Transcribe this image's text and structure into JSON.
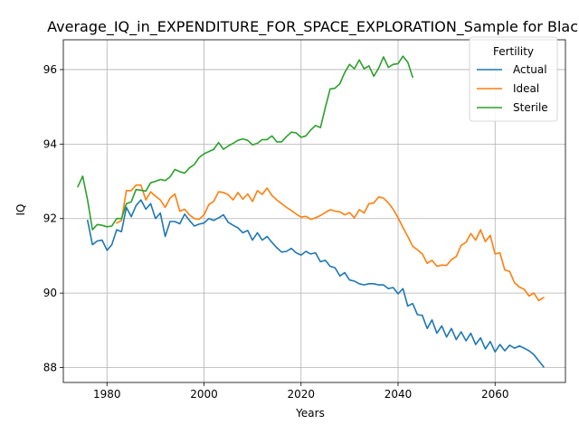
{
  "chart_data": {
    "type": "line",
    "title": "Average_IQ_in_EXPENDITURE_FOR_SPACE_EXPLORATION_Sample for Black_Ma",
    "xlabel": "Years",
    "ylabel": "IQ",
    "xlim": [
      1971,
      2074.5
    ],
    "ylim": [
      87.6,
      96.8
    ],
    "xticks": [
      1980,
      2000,
      2020,
      2040,
      2060
    ],
    "yticks": [
      88,
      90,
      92,
      94,
      96
    ],
    "grid": true,
    "legend": {
      "title": "Fertility",
      "position": "top-right"
    },
    "colors": {
      "Actual": "#1f77b4",
      "Ideal": "#ff7f0e",
      "Sterile": "#2ca02c"
    },
    "series": [
      {
        "name": "Actual",
        "x": [
          1976,
          1977,
          1978,
          1979,
          1980,
          1981,
          1982,
          1983,
          1984,
          1985,
          1986,
          1987,
          1988,
          1989,
          1990,
          1991,
          1992,
          1993,
          1994,
          1995,
          1996,
          1997,
          1998,
          1999,
          2000,
          2001,
          2002,
          2003,
          2004,
          2005,
          2006,
          2007,
          2008,
          2009,
          2010,
          2011,
          2012,
          2013,
          2014,
          2015,
          2016,
          2017,
          2018,
          2019,
          2020,
          2021,
          2022,
          2023,
          2024,
          2025,
          2026,
          2027,
          2028,
          2029,
          2030,
          2031,
          2032,
          2033,
          2034,
          2035,
          2036,
          2037,
          2038,
          2039,
          2040,
          2041,
          2042,
          2043,
          2044,
          2045,
          2046,
          2047,
          2048,
          2049,
          2050,
          2051,
          2052,
          2053,
          2054,
          2055,
          2056,
          2057,
          2058,
          2059,
          2060,
          2061,
          2062,
          2063,
          2064,
          2065,
          2066,
          2067,
          2068,
          2069,
          2070
        ],
        "values": [
          91.95,
          91.3,
          91.4,
          91.42,
          91.15,
          91.3,
          91.7,
          91.65,
          92.3,
          92.05,
          92.35,
          92.5,
          92.25,
          92.4,
          92.0,
          92.15,
          91.52,
          91.92,
          91.92,
          91.86,
          92.12,
          91.95,
          91.8,
          91.85,
          91.88,
          92.0,
          91.95,
          92.02,
          92.1,
          91.9,
          91.82,
          91.75,
          91.62,
          91.68,
          91.42,
          91.62,
          91.42,
          91.52,
          91.36,
          91.22,
          91.1,
          91.12,
          91.2,
          91.08,
          91.02,
          91.12,
          91.05,
          91.08,
          90.84,
          90.88,
          90.72,
          90.68,
          90.46,
          90.55,
          90.35,
          90.32,
          90.25,
          90.22,
          90.25,
          90.25,
          90.22,
          90.22,
          90.12,
          90.15,
          89.98,
          90.12,
          89.65,
          89.72,
          89.42,
          89.4,
          89.05,
          89.28,
          88.92,
          89.12,
          88.82,
          89.05,
          88.75,
          88.96,
          88.72,
          88.92,
          88.62,
          88.8,
          88.5,
          88.7,
          88.42,
          88.62,
          88.45,
          88.6,
          88.52,
          88.58,
          88.52,
          88.45,
          88.35,
          88.18,
          88.02
        ]
      },
      {
        "name": "Ideal",
        "x": [
          1982,
          1983,
          1984,
          1985,
          1986,
          1987,
          1988,
          1989,
          1990,
          1991,
          1992,
          1993,
          1994,
          1995,
          1996,
          1997,
          1998,
          1999,
          2000,
          2001,
          2002,
          2003,
          2004,
          2005,
          2006,
          2007,
          2008,
          2009,
          2010,
          2011,
          2012,
          2013,
          2014,
          2015,
          2016,
          2017,
          2018,
          2019,
          2020,
          2021,
          2022,
          2023,
          2024,
          2025,
          2026,
          2027,
          2028,
          2029,
          2030,
          2031,
          2032,
          2033,
          2034,
          2035,
          2036,
          2037,
          2038,
          2039,
          2040,
          2041,
          2042,
          2043,
          2044,
          2045,
          2046,
          2047,
          2048,
          2049,
          2050,
          2051,
          2052,
          2053,
          2054,
          2055,
          2056,
          2057,
          2058,
          2059,
          2060,
          2061,
          2062,
          2063,
          2064,
          2065,
          2066,
          2067,
          2068,
          2069,
          2070
        ],
        "values": [
          91.88,
          91.95,
          92.75,
          92.75,
          92.9,
          92.9,
          92.5,
          92.72,
          92.6,
          92.5,
          92.3,
          92.55,
          92.66,
          92.2,
          92.25,
          92.1,
          92.0,
          91.98,
          92.1,
          92.38,
          92.46,
          92.72,
          92.7,
          92.64,
          92.5,
          92.7,
          92.52,
          92.66,
          92.46,
          92.75,
          92.65,
          92.82,
          92.62,
          92.5,
          92.4,
          92.3,
          92.22,
          92.12,
          92.04,
          92.06,
          91.98,
          92.02,
          92.08,
          92.16,
          92.24,
          92.2,
          92.18,
          92.1,
          92.16,
          92.02,
          92.24,
          92.15,
          92.4,
          92.42,
          92.58,
          92.55,
          92.42,
          92.25,
          92.02,
          91.76,
          91.52,
          91.26,
          91.16,
          91.05,
          90.8,
          90.88,
          90.72,
          90.75,
          90.74,
          90.9,
          90.98,
          91.28,
          91.36,
          91.6,
          91.42,
          91.7,
          91.38,
          91.55,
          91.05,
          91.08,
          90.62,
          90.58,
          90.28,
          90.16,
          90.1,
          89.92,
          90.0,
          89.8,
          89.88
        ]
      },
      {
        "name": "Sterile",
        "x": [
          1974,
          1975,
          1976,
          1977,
          1978,
          1979,
          1980,
          1981,
          1982,
          1983,
          1984,
          1985,
          1986,
          1987,
          1988,
          1989,
          1990,
          1991,
          1992,
          1993,
          1994,
          1995,
          1996,
          1997,
          1998,
          1999,
          2000,
          2001,
          2002,
          2003,
          2004,
          2005,
          2006,
          2007,
          2008,
          2009,
          2010,
          2011,
          2012,
          2013,
          2014,
          2015,
          2016,
          2017,
          2018,
          2019,
          2020,
          2021,
          2022,
          2023,
          2024,
          2025,
          2026,
          2027,
          2028,
          2029,
          2030,
          2031,
          2032,
          2033,
          2034,
          2035,
          2036,
          2037,
          2038,
          2039,
          2040,
          2041,
          2042,
          2043
        ],
        "values": [
          92.86,
          93.14,
          92.5,
          91.7,
          91.84,
          91.82,
          91.78,
          91.8,
          92.0,
          92.0,
          92.4,
          92.45,
          92.78,
          92.76,
          92.74,
          92.96,
          93.0,
          93.05,
          93.02,
          93.12,
          93.32,
          93.26,
          93.22,
          93.36,
          93.45,
          93.64,
          93.74,
          93.8,
          93.86,
          94.04,
          93.86,
          93.95,
          94.02,
          94.1,
          94.14,
          94.1,
          93.98,
          94.02,
          94.12,
          94.12,
          94.22,
          94.06,
          94.06,
          94.2,
          94.32,
          94.3,
          94.18,
          94.22,
          94.38,
          94.5,
          94.44,
          94.98,
          95.48,
          95.5,
          95.62,
          95.92,
          96.14,
          96.02,
          96.26,
          96.02,
          96.1,
          95.82,
          96.04,
          96.34,
          96.06,
          96.14,
          96.16,
          96.36,
          96.2,
          95.8
        ]
      }
    ]
  }
}
